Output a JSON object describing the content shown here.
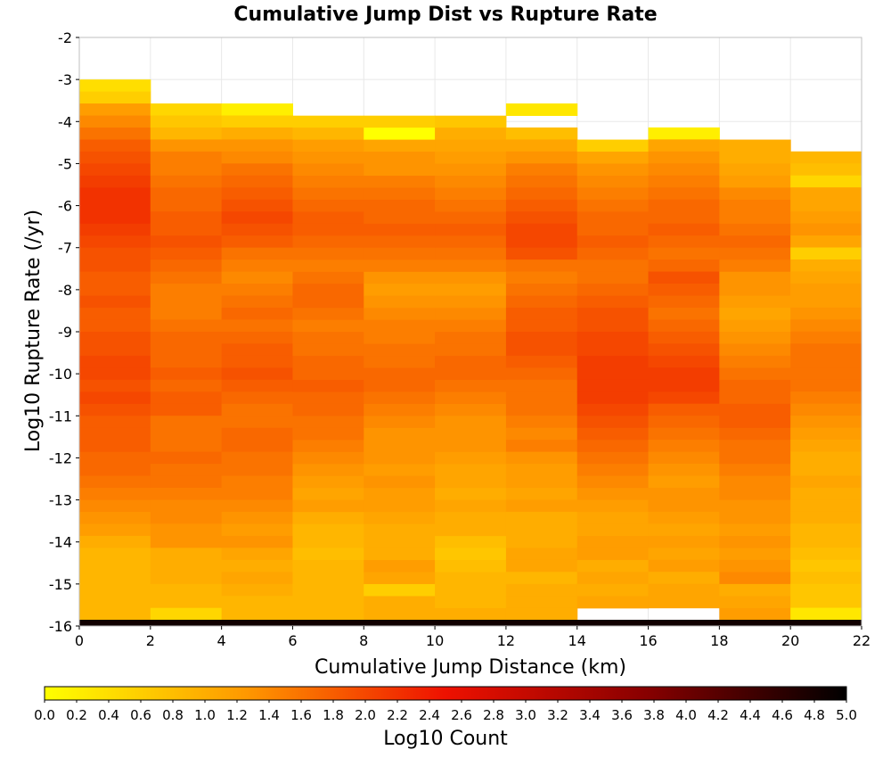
{
  "chart_data": {
    "type": "heatmap",
    "title": "Cumulative Jump Dist vs Rupture Rate",
    "xlabel": "Cumulative Jump Distance (km)",
    "ylabel": "Log10 Rupture Rate (/yr)",
    "xlim": [
      0,
      22
    ],
    "ylim": [
      -16,
      -2
    ],
    "x_ticks": [
      0,
      2,
      4,
      6,
      8,
      10,
      12,
      14,
      16,
      18,
      20,
      22
    ],
    "y_ticks": [
      -2,
      -3,
      -4,
      -5,
      -6,
      -7,
      -8,
      -9,
      -10,
      -11,
      -12,
      -13,
      -14,
      -15,
      -16
    ],
    "grid": true,
    "x_bin_width": 2,
    "y_bin_height": 0.2857,
    "colorbar": {
      "label": "Log10 Count",
      "range": [
        0,
        5
      ],
      "ticks": [
        "0.0",
        "0.2",
        "0.4",
        "0.6",
        "0.8",
        "1.0",
        "1.2",
        "1.4",
        "1.6",
        "1.8",
        "2.0",
        "2.2",
        "2.4",
        "2.6",
        "2.8",
        "3.0",
        "3.2",
        "3.4",
        "3.6",
        "3.8",
        "4.0",
        "4.2",
        "4.4",
        "4.6",
        "4.8",
        "5.0"
      ],
      "colormap": [
        "#ffff00",
        "#ff9900",
        "#ee1100",
        "#880000",
        "#000000"
      ]
    },
    "columns": [
      {
        "x": 0,
        "top": -3.0,
        "values": [
          0.4,
          0.6,
          1.2,
          1.4,
          1.6,
          1.8,
          1.9,
          2.0,
          2.1,
          2.2,
          2.2,
          2.2,
          2.1,
          2.0,
          1.9,
          1.9,
          1.8,
          1.8,
          1.9,
          1.8,
          1.8,
          1.9,
          1.9,
          2.0,
          2.0,
          1.9,
          2.0,
          1.9,
          1.8,
          1.8,
          1.8,
          1.7,
          1.7,
          1.6,
          1.5,
          1.4,
          1.3,
          1.2,
          1.0,
          0.9,
          0.9,
          0.9,
          0.9,
          0.9,
          0.9
        ]
      },
      {
        "x": 2,
        "top": -3.57,
        "values": [
          0.5,
          0.7,
          0.9,
          1.3,
          1.5,
          1.5,
          1.6,
          1.7,
          1.7,
          1.8,
          1.8,
          1.9,
          1.8,
          1.7,
          1.6,
          1.5,
          1.5,
          1.5,
          1.6,
          1.7,
          1.7,
          1.7,
          1.8,
          1.7,
          1.8,
          1.8,
          1.6,
          1.6,
          1.6,
          1.7,
          1.6,
          1.6,
          1.5,
          1.4,
          1.4,
          1.3,
          1.3,
          1.0,
          1.0,
          1.0,
          0.9,
          0.9,
          0.5
        ]
      },
      {
        "x": 4,
        "top": -3.57,
        "values": [
          0.2,
          0.6,
          1.0,
          1.3,
          1.4,
          1.6,
          1.7,
          1.8,
          1.9,
          2.0,
          1.9,
          1.8,
          1.6,
          1.5,
          1.4,
          1.5,
          1.6,
          1.7,
          1.6,
          1.7,
          1.8,
          1.8,
          1.9,
          1.8,
          1.7,
          1.6,
          1.6,
          1.7,
          1.7,
          1.6,
          1.6,
          1.5,
          1.5,
          1.4,
          1.3,
          1.2,
          1.3,
          1.1,
          1.0,
          1.1,
          1.0,
          0.9,
          0.9
        ]
      },
      {
        "x": 6,
        "top": -3.86,
        "values": [
          0.6,
          0.9,
          1.2,
          1.3,
          1.4,
          1.5,
          1.6,
          1.7,
          1.8,
          1.8,
          1.7,
          1.6,
          1.5,
          1.6,
          1.7,
          1.7,
          1.6,
          1.5,
          1.6,
          1.6,
          1.7,
          1.7,
          1.8,
          1.7,
          1.7,
          1.6,
          1.6,
          1.5,
          1.4,
          1.3,
          1.2,
          1.1,
          1.2,
          1.0,
          0.9,
          0.9,
          0.8,
          0.9,
          0.9,
          0.9,
          0.9,
          0.9
        ]
      },
      {
        "x": 8,
        "top": -3.86,
        "values": [
          0.6,
          0.0,
          1.1,
          1.3,
          1.3,
          1.5,
          1.6,
          1.7,
          1.7,
          1.8,
          1.7,
          1.6,
          1.5,
          1.3,
          1.2,
          1.3,
          1.4,
          1.5,
          1.5,
          1.6,
          1.6,
          1.7,
          1.7,
          1.6,
          1.5,
          1.4,
          1.3,
          1.3,
          1.3,
          1.2,
          1.3,
          1.2,
          1.2,
          1.1,
          1.0,
          1.0,
          1.0,
          1.2,
          1.1,
          0.6,
          1.0,
          1.0
        ]
      },
      {
        "x": 10,
        "top": -3.86,
        "values": [
          0.7,
          1.0,
          1.1,
          1.2,
          1.3,
          1.4,
          1.5,
          1.6,
          1.7,
          1.8,
          1.7,
          1.6,
          1.5,
          1.3,
          1.2,
          1.3,
          1.4,
          1.5,
          1.6,
          1.6,
          1.7,
          1.7,
          1.6,
          1.5,
          1.4,
          1.3,
          1.3,
          1.3,
          1.2,
          1.1,
          1.1,
          1.0,
          1.1,
          1.0,
          1.0,
          0.8,
          0.7,
          0.8,
          0.9,
          0.9,
          0.9,
          1.0
        ]
      },
      {
        "x": 12,
        "top": -3.57,
        "values": [
          0.3,
          null,
          0.8,
          1.1,
          1.3,
          1.5,
          1.6,
          1.7,
          1.8,
          1.9,
          2.0,
          2.0,
          1.9,
          1.6,
          1.5,
          1.6,
          1.7,
          1.8,
          1.8,
          1.9,
          1.9,
          1.8,
          1.7,
          1.6,
          1.6,
          1.6,
          1.5,
          1.4,
          1.5,
          1.3,
          1.2,
          1.2,
          1.1,
          1.2,
          1.0,
          1.0,
          1.0,
          1.1,
          1.1,
          0.9,
          1.0,
          1.0,
          1.0
        ]
      },
      {
        "x": 14,
        "top": -4.43,
        "values": [
          0.6,
          1.1,
          1.3,
          1.4,
          1.5,
          1.6,
          1.7,
          1.7,
          1.8,
          1.7,
          1.6,
          1.6,
          1.7,
          1.8,
          1.9,
          1.9,
          2.0,
          2.0,
          2.1,
          2.1,
          2.1,
          2.1,
          2.0,
          1.9,
          1.8,
          1.7,
          1.6,
          1.5,
          1.4,
          1.3,
          1.2,
          1.1,
          1.1,
          1.2,
          1.2,
          1.0,
          1.1,
          1.0,
          1.1
        ]
      },
      {
        "x": 16,
        "top": -4.14,
        "values": [
          0.2,
          1.1,
          1.3,
          1.4,
          1.5,
          1.6,
          1.7,
          1.7,
          1.8,
          1.7,
          1.6,
          1.7,
          1.9,
          1.8,
          1.7,
          1.6,
          1.7,
          1.8,
          1.9,
          2.0,
          2.1,
          2.1,
          2.0,
          1.8,
          1.7,
          1.6,
          1.5,
          1.4,
          1.3,
          1.2,
          1.3,
          1.3,
          1.2,
          1.1,
          1.2,
          1.1,
          1.2,
          1.0,
          1.1,
          1.1
        ]
      },
      {
        "x": 18,
        "top": -4.43,
        "values": [
          1.0,
          1.0,
          1.1,
          1.2,
          1.4,
          1.5,
          1.5,
          1.6,
          1.7,
          1.6,
          1.5,
          1.3,
          1.3,
          1.2,
          1.1,
          1.2,
          1.3,
          1.4,
          1.5,
          1.6,
          1.7,
          1.7,
          1.8,
          1.8,
          1.7,
          1.6,
          1.6,
          1.5,
          1.4,
          1.4,
          1.3,
          1.3,
          1.2,
          1.3,
          1.2,
          1.3,
          1.4,
          1.0,
          1.1,
          1.2
        ]
      },
      {
        "x": 20,
        "top": -4.71,
        "values": [
          0.9,
          0.8,
          0.5,
          1.1,
          1.1,
          1.2,
          1.3,
          1.1,
          0.6,
          1.0,
          1.1,
          1.2,
          1.2,
          1.3,
          1.4,
          1.5,
          1.6,
          1.6,
          1.6,
          1.6,
          1.5,
          1.4,
          1.3,
          1.2,
          1.1,
          1.0,
          1.0,
          1.1,
          1.0,
          1.0,
          1.0,
          0.9,
          0.9,
          0.8,
          0.7,
          0.8,
          0.7,
          0.7,
          0.3
        ]
      }
    ],
    "bottom_row": {
      "y": -16,
      "value": 4.85
    }
  }
}
